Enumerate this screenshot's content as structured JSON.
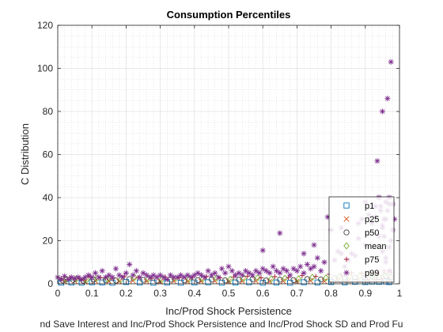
{
  "chart_data": {
    "type": "scatter",
    "title": "Consumption Percentiles",
    "xlabel": "Inc/Prod Shock Persistence",
    "xlabel2": "nd Save Interest and Inc/Prod Shock Persistence and Inc/Prod Shock SD and Prod Fu",
    "ylabel": "C Distribution",
    "xlim": [
      0,
      1
    ],
    "ylim": [
      0,
      120
    ],
    "xticks": [
      0,
      0.1,
      0.2,
      0.3,
      0.4,
      0.5,
      0.6,
      0.7,
      0.8,
      0.9,
      1
    ],
    "xtick_labels": [
      "0",
      "0.1",
      "0.2",
      "0.3",
      "0.4",
      "0.5",
      "0.6",
      "0.7",
      "0.8",
      "0.9",
      "1"
    ],
    "yticks": [
      0,
      20,
      40,
      60,
      80,
      100,
      120
    ],
    "ytick_labels": [
      "0",
      "20",
      "40",
      "60",
      "80",
      "100",
      "120"
    ],
    "grid": true,
    "minor_grid": true,
    "legend_position": "bottom-right",
    "series": [
      {
        "name": "p1",
        "marker": "square",
        "color": "#0072BD",
        "x": [
          0.01,
          0.04,
          0.07,
          0.1,
          0.13,
          0.16,
          0.2,
          0.24,
          0.28,
          0.32,
          0.36,
          0.4,
          0.44,
          0.48,
          0.52,
          0.56,
          0.6,
          0.64,
          0.68,
          0.72,
          0.76,
          0.8,
          0.84,
          0.87,
          0.9,
          0.92,
          0.94,
          0.96,
          0.97
        ],
        "y": [
          0.5,
          0.6,
          0.5,
          0.7,
          0.6,
          0.5,
          0.8,
          0.6,
          0.5,
          0.6,
          0.5,
          0.6,
          0.7,
          0.5,
          0.6,
          0.7,
          0.5,
          0.6,
          0.5,
          0.7,
          0.6,
          0.8,
          0.7,
          0.9,
          0.8,
          1.0,
          0.9,
          1.1,
          0.8
        ]
      },
      {
        "name": "p25",
        "marker": "x",
        "color": "#D95319",
        "x": [
          0.02,
          0.05,
          0.08,
          0.11,
          0.15,
          0.18,
          0.22,
          0.26,
          0.3,
          0.34,
          0.38,
          0.42,
          0.46,
          0.5,
          0.54,
          0.58,
          0.62,
          0.66,
          0.7,
          0.74,
          0.78,
          0.82,
          0.85,
          0.88,
          0.91,
          0.93,
          0.95,
          0.97
        ],
        "y": [
          1.0,
          1.2,
          0.9,
          1.3,
          1.1,
          1.0,
          1.4,
          1.1,
          0.9,
          1.2,
          1.0,
          1.1,
          1.3,
          1.0,
          1.2,
          1.3,
          1.0,
          1.2,
          1.1,
          1.4,
          1.2,
          1.6,
          1.5,
          1.8,
          1.7,
          2.0,
          1.9,
          2.2
        ]
      },
      {
        "name": "p50",
        "marker": "circle",
        "color": "#404040",
        "x": [
          0.015,
          0.045,
          0.075,
          0.105,
          0.14,
          0.17,
          0.21,
          0.25,
          0.29,
          0.33,
          0.37,
          0.41,
          0.45,
          0.49,
          0.53,
          0.57,
          0.61,
          0.65,
          0.69,
          0.73,
          0.77,
          0.81,
          0.84,
          0.87,
          0.9,
          0.92,
          0.94,
          0.96,
          0.975
        ],
        "y": [
          1.5,
          1.8,
          1.4,
          2.0,
          1.7,
          1.5,
          2.2,
          1.8,
          1.5,
          1.9,
          1.6,
          1.7,
          2.0,
          1.6,
          1.9,
          2.1,
          1.6,
          1.9,
          1.7,
          2.2,
          2.0,
          2.6,
          2.4,
          2.9,
          2.8,
          3.2,
          3.1,
          3.6,
          3.0
        ]
      },
      {
        "name": "mean",
        "marker": "diamond",
        "color": "#77AC30",
        "x": [
          0.025,
          0.055,
          0.085,
          0.115,
          0.145,
          0.185,
          0.225,
          0.265,
          0.305,
          0.345,
          0.385,
          0.425,
          0.465,
          0.505,
          0.545,
          0.585,
          0.625,
          0.665,
          0.705,
          0.745,
          0.785,
          0.825,
          0.855,
          0.885,
          0.915,
          0.935,
          0.955,
          0.97
        ],
        "y": [
          2.0,
          2.4,
          1.9,
          2.6,
          2.2,
          2.0,
          2.9,
          2.3,
          2.0,
          2.5,
          2.1,
          2.3,
          2.7,
          2.1,
          2.5,
          2.8,
          2.2,
          2.6,
          2.3,
          3.0,
          2.7,
          3.5,
          3.2,
          4.0,
          3.8,
          4.5,
          4.3,
          5.0
        ]
      },
      {
        "name": "p75",
        "marker": "plus",
        "color": "#A2142F",
        "x": [
          0.01,
          0.035,
          0.065,
          0.095,
          0.125,
          0.16,
          0.195,
          0.235,
          0.275,
          0.315,
          0.355,
          0.395,
          0.435,
          0.475,
          0.515,
          0.555,
          0.595,
          0.635,
          0.675,
          0.715,
          0.755,
          0.795,
          0.83,
          0.86,
          0.89,
          0.91,
          0.935,
          0.955,
          0.975
        ],
        "y": [
          2.5,
          3.0,
          2.4,
          3.3,
          2.8,
          2.5,
          3.6,
          2.9,
          2.5,
          3.1,
          2.7,
          2.9,
          3.4,
          2.7,
          3.2,
          3.5,
          2.8,
          3.3,
          2.9,
          3.8,
          3.4,
          4.4,
          4.0,
          5.0,
          4.8,
          5.5,
          5.3,
          6.0,
          5.5
        ]
      },
      {
        "name": "p99",
        "marker": "asterisk",
        "color": "#7E2F8E",
        "x": [
          0.0,
          0.01,
          0.02,
          0.03,
          0.04,
          0.05,
          0.06,
          0.07,
          0.08,
          0.09,
          0.1,
          0.11,
          0.12,
          0.13,
          0.14,
          0.15,
          0.16,
          0.17,
          0.18,
          0.19,
          0.2,
          0.21,
          0.22,
          0.23,
          0.24,
          0.25,
          0.26,
          0.27,
          0.28,
          0.29,
          0.3,
          0.31,
          0.32,
          0.33,
          0.34,
          0.35,
          0.36,
          0.37,
          0.38,
          0.39,
          0.4,
          0.41,
          0.42,
          0.43,
          0.44,
          0.45,
          0.46,
          0.47,
          0.48,
          0.49,
          0.5,
          0.51,
          0.52,
          0.53,
          0.54,
          0.55,
          0.56,
          0.57,
          0.58,
          0.59,
          0.6,
          0.61,
          0.62,
          0.63,
          0.64,
          0.65,
          0.66,
          0.67,
          0.68,
          0.69,
          0.7,
          0.71,
          0.72,
          0.73,
          0.74,
          0.75,
          0.76,
          0.77,
          0.78,
          0.79,
          0.8,
          0.81,
          0.82,
          0.83,
          0.84,
          0.85,
          0.86,
          0.87,
          0.88,
          0.89,
          0.9,
          0.91,
          0.92,
          0.93,
          0.94,
          0.95,
          0.96,
          0.97,
          0.98,
          0.985,
          0.6,
          0.65,
          0.72,
          0.75,
          0.83,
          0.88,
          0.9,
          0.93,
          0.935,
          0.94,
          0.945,
          0.95,
          0.955,
          0.96,
          0.965,
          0.97,
          0.975,
          0.98,
          0.975,
          0.97,
          0.965,
          0.96,
          0.955,
          0.95,
          0.945,
          0.94,
          0.95,
          0.96,
          0.97
        ],
        "y": [
          3,
          2,
          3.5,
          2,
          3,
          2.5,
          3,
          2,
          3,
          4,
          3,
          5,
          3,
          6,
          3,
          4,
          3,
          7,
          4,
          3,
          5,
          9,
          4,
          6,
          3,
          5,
          4,
          3,
          4,
          3,
          4,
          3,
          2,
          4,
          3,
          3,
          4,
          3,
          4,
          3,
          4,
          5,
          4,
          3,
          6,
          4,
          5,
          3,
          7,
          5,
          8,
          6,
          4,
          5,
          4,
          6,
          5,
          4,
          6,
          5,
          7,
          6,
          5,
          8,
          6,
          5,
          7,
          6,
          4,
          7,
          6,
          8,
          5,
          9,
          7,
          8,
          12,
          6,
          10,
          31,
          25,
          11,
          15,
          26,
          8,
          11,
          14,
          13,
          21,
          30,
          18,
          32,
          28,
          36,
          40,
          26,
          30,
          40,
          37,
          30,
          15.5,
          23.5,
          14,
          18,
          14,
          28,
          38,
          31,
          57,
          40,
          36,
          80,
          22,
          38,
          86,
          17,
          103,
          25,
          20,
          37,
          34,
          12,
          30,
          27,
          34,
          22,
          15,
          10,
          6
        ]
      }
    ],
    "legend_labels": [
      "p1",
      "p25",
      "p50",
      "mean",
      "p75",
      "p99"
    ]
  }
}
